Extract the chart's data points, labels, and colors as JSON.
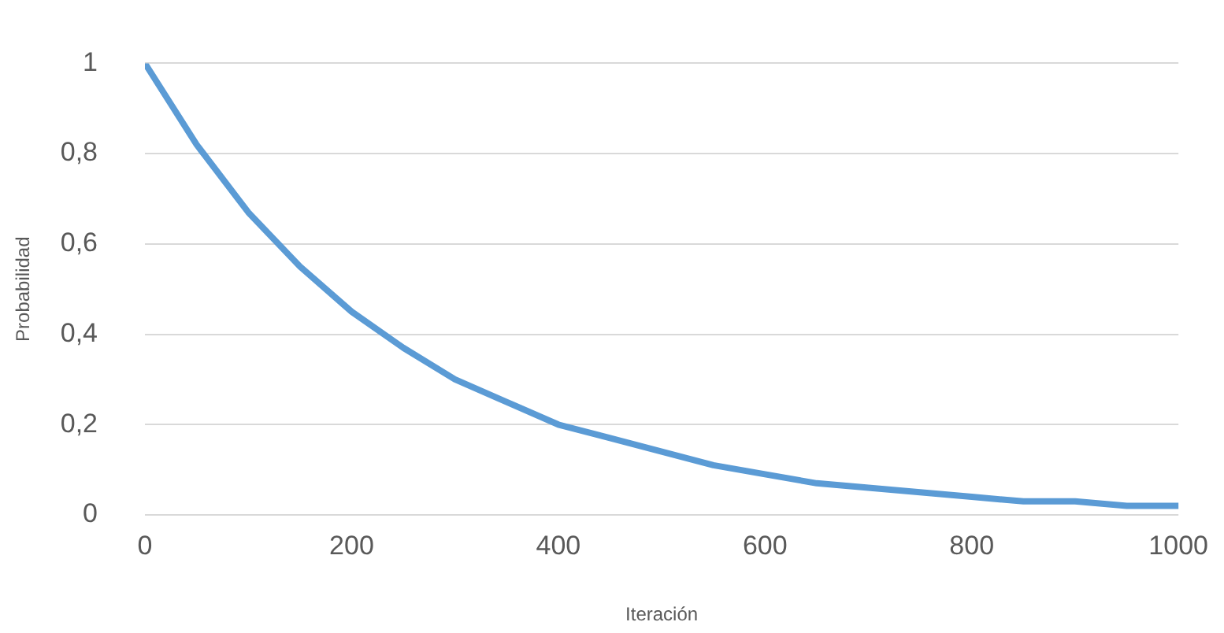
{
  "chart_data": {
    "type": "line",
    "xlabel": "Iteración",
    "ylabel": "Probabilidad",
    "x": [
      0,
      50,
      100,
      150,
      200,
      250,
      300,
      350,
      400,
      450,
      500,
      550,
      600,
      650,
      700,
      750,
      800,
      850,
      900,
      950,
      1000
    ],
    "series": [
      {
        "color": "#5b9bd5",
        "values": [
          1,
          0.82,
          0.67,
          0.55,
          0.45,
          0.37,
          0.3,
          0.25,
          0.2,
          0.17,
          0.14,
          0.11,
          0.09,
          0.07,
          0.06,
          0.05,
          0.04,
          0.03,
          0.03,
          0.02,
          0.02
        ]
      }
    ],
    "xlim": [
      0,
      1000
    ],
    "xticks": [
      0,
      200,
      400,
      600,
      800,
      1000
    ],
    "ylim": [
      0,
      1
    ],
    "yticks": [
      0,
      {
        "value": 0.2,
        "label": "0,2"
      },
      {
        "value": 0.4,
        "label": "0,4"
      },
      {
        "value": 0.6,
        "label": "0,6"
      },
      {
        "value": 0.8,
        "label": "0,8"
      },
      1
    ],
    "grid": "y",
    "legend": false,
    "marker": "none",
    "line_style": "solid"
  }
}
